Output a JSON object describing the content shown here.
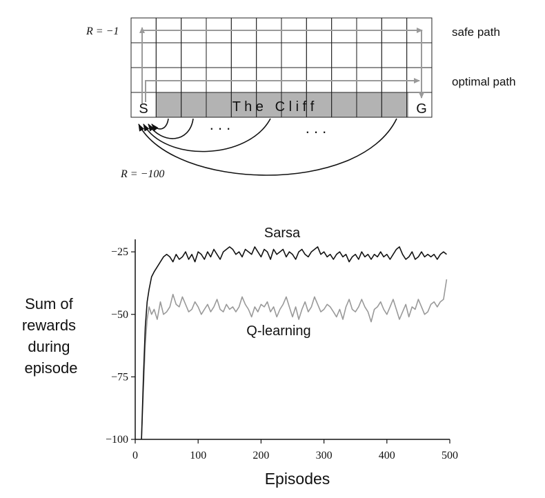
{
  "gridworld": {
    "rows": 4,
    "cols": 12,
    "start_label": "S",
    "goal_label": "G",
    "cliff_label": "T h e   C l i f f",
    "step_reward_label": "R = −1",
    "cliff_reward_label": "R = −100",
    "safe_path_label": "safe path",
    "optimal_path_label": "optimal path",
    "ellipsis": ". . .",
    "colors": {
      "cliff_fill": "#b3b3b3",
      "path_arrow": "#9a9a9a",
      "grid": "#222222"
    }
  },
  "chart_data": {
    "type": "line",
    "xlabel": "Episodes",
    "ylabel_lines": [
      "Sum of",
      "rewards",
      "during",
      "episode"
    ],
    "xlim": [
      0,
      500
    ],
    "ylim": [
      -100,
      -20
    ],
    "xticks": [
      0,
      100,
      200,
      300,
      400,
      500
    ],
    "yticks": [
      -100,
      -75,
      -50,
      -25
    ],
    "ytick_labels": [
      "−100",
      "−75",
      "−50",
      "−25"
    ],
    "grid": false,
    "series": [
      {
        "name": "Sarsa",
        "color": "#111111",
        "x": [
          10,
          13,
          16,
          19,
          22,
          26,
          30,
          35,
          40,
          45,
          50,
          55,
          60,
          65,
          70,
          75,
          80,
          85,
          90,
          95,
          100,
          105,
          110,
          115,
          120,
          125,
          130,
          135,
          140,
          145,
          150,
          155,
          160,
          165,
          170,
          175,
          180,
          185,
          190,
          195,
          200,
          205,
          210,
          215,
          220,
          225,
          230,
          235,
          240,
          245,
          250,
          255,
          260,
          265,
          270,
          275,
          280,
          285,
          290,
          295,
          300,
          305,
          310,
          315,
          320,
          325,
          330,
          335,
          340,
          345,
          350,
          355,
          360,
          365,
          370,
          375,
          380,
          385,
          390,
          395,
          400,
          405,
          410,
          415,
          420,
          425,
          430,
          435,
          440,
          445,
          450,
          455,
          460,
          465,
          470,
          475,
          480,
          485,
          490,
          495
        ],
        "values": [
          -100,
          -75,
          -55,
          -45,
          -40,
          -35,
          -33,
          -31,
          -29,
          -27,
          -26,
          -27,
          -29,
          -26,
          -28,
          -27,
          -25,
          -28,
          -26,
          -29,
          -25,
          -26,
          -28,
          -25,
          -27,
          -24,
          -26,
          -28,
          -25,
          -24,
          -23,
          -24,
          -26,
          -25,
          -27,
          -24,
          -25,
          -26,
          -23,
          -25,
          -27,
          -24,
          -25,
          -28,
          -24,
          -26,
          -25,
          -24,
          -27,
          -25,
          -26,
          -28,
          -25,
          -24,
          -26,
          -27,
          -25,
          -24,
          -23,
          -26,
          -25,
          -27,
          -26,
          -28,
          -26,
          -25,
          -27,
          -26,
          -29,
          -27,
          -26,
          -28,
          -25,
          -27,
          -26,
          -28,
          -26,
          -27,
          -25,
          -27,
          -26,
          -28,
          -26,
          -24,
          -23,
          -26,
          -28,
          -27,
          -25,
          -28,
          -27,
          -25,
          -27,
          -26,
          -27,
          -26,
          -28,
          -26,
          -25,
          -26
        ]
      },
      {
        "name": "Q-learning",
        "color": "#999999",
        "x": [
          10,
          13,
          16,
          19,
          22,
          26,
          30,
          35,
          40,
          45,
          50,
          55,
          60,
          65,
          70,
          75,
          80,
          85,
          90,
          95,
          100,
          105,
          110,
          115,
          120,
          125,
          130,
          135,
          140,
          145,
          150,
          155,
          160,
          165,
          170,
          175,
          180,
          185,
          190,
          195,
          200,
          205,
          210,
          215,
          220,
          225,
          230,
          235,
          240,
          245,
          250,
          255,
          260,
          265,
          270,
          275,
          280,
          285,
          290,
          295,
          300,
          305,
          310,
          315,
          320,
          325,
          330,
          335,
          340,
          345,
          350,
          355,
          360,
          365,
          370,
          375,
          380,
          385,
          390,
          395,
          400,
          405,
          410,
          415,
          420,
          425,
          430,
          435,
          440,
          445,
          450,
          455,
          460,
          465,
          470,
          475,
          480,
          485,
          490,
          495
        ],
        "values": [
          -100,
          -80,
          -62,
          -52,
          -47,
          -50,
          -48,
          -52,
          -45,
          -50,
          -49,
          -47,
          -42,
          -46,
          -47,
          -43,
          -46,
          -49,
          -48,
          -45,
          -47,
          -50,
          -48,
          -46,
          -49,
          -47,
          -44,
          -48,
          -49,
          -46,
          -48,
          -47,
          -49,
          -47,
          -43,
          -46,
          -48,
          -51,
          -47,
          -49,
          -46,
          -47,
          -45,
          -49,
          -47,
          -51,
          -48,
          -46,
          -43,
          -47,
          -51,
          -47,
          -52,
          -48,
          -45,
          -49,
          -47,
          -43,
          -46,
          -49,
          -48,
          -46,
          -47,
          -49,
          -51,
          -48,
          -52,
          -47,
          -44,
          -48,
          -49,
          -47,
          -44,
          -47,
          -49,
          -53,
          -48,
          -47,
          -45,
          -48,
          -50,
          -47,
          -44,
          -48,
          -52,
          -49,
          -46,
          -51,
          -47,
          -48,
          -44,
          -47,
          -50,
          -49,
          -46,
          -45,
          -47,
          -45,
          -44,
          -36
        ]
      }
    ]
  }
}
